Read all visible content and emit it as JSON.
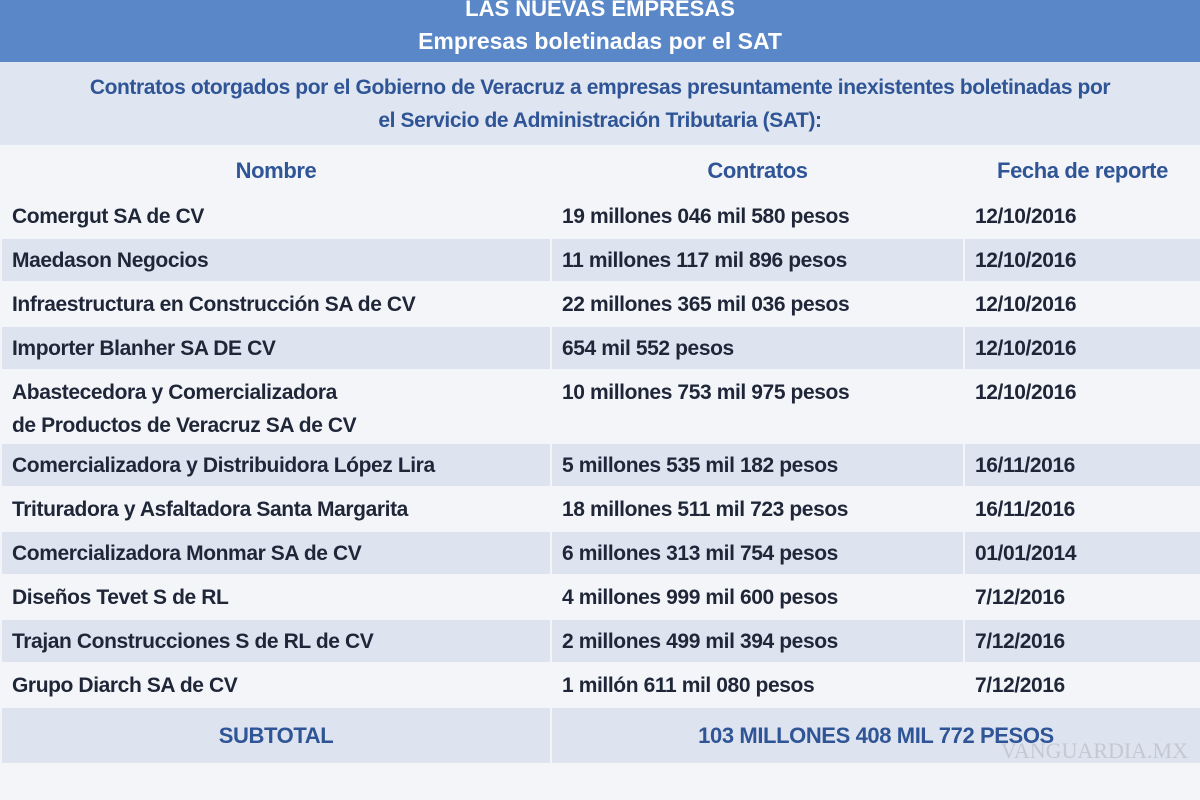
{
  "header": {
    "title": "LAS NUEVAS EMPRESAS",
    "subtitle": "Empresas boletinadas por el SAT"
  },
  "intro": [
    "Contratos otorgados por el Gobierno de Veracruz a empresas presuntamente inexistentes boletinadas por",
    "el Servicio de Administración Tributaria (SAT):"
  ],
  "table": {
    "columns": [
      "Nombre",
      "Contratos",
      "Fecha de reporte"
    ],
    "rows": [
      [
        "Comergut SA de CV",
        "19 millones 046 mil 580 pesos",
        "12/10/2016"
      ],
      [
        "Maedason Negocios",
        "11 millones 117 mil 896 pesos",
        "12/10/2016"
      ],
      [
        "Infraestructura en Construcción SA de CV",
        "22 millones 365 mil 036 pesos",
        "12/10/2016"
      ],
      [
        "Importer Blanher SA DE CV",
        "654 mil 552 pesos",
        "12/10/2016"
      ],
      [
        "Abastecedora y Comercializadora\nde Productos de Veracruz SA de CV",
        "10 millones 753 mil 975 pesos",
        "12/10/2016"
      ],
      [
        "Comercializadora y Distribuidora López Lira",
        "5 millones 535 mil 182 pesos",
        "16/11/2016"
      ],
      [
        "Trituradora y Asfaltadora Santa Margarita",
        "18 millones 511 mil 723 pesos",
        "16/11/2016"
      ],
      [
        "Comercializadora Monmar SA de CV",
        "6 millones 313 mil 754 pesos",
        "01/01/2014"
      ],
      [
        "Diseños Tevet S de RL",
        "4 millones 999 mil 600 pesos",
        "7/12/2016"
      ],
      [
        "Trajan Construcciones S de RL de CV",
        "2 millones 499 mil 394 pesos",
        "7/12/2016"
      ],
      [
        "Grupo Diarch SA de CV",
        "1 millón 611 mil 080 pesos",
        "7/12/2016"
      ]
    ],
    "subtotal": {
      "label": "SUBTOTAL",
      "value": "103 MILLONES 408 MIL 772 PESOS"
    }
  },
  "watermark": "VANGUARDIA.MX"
}
